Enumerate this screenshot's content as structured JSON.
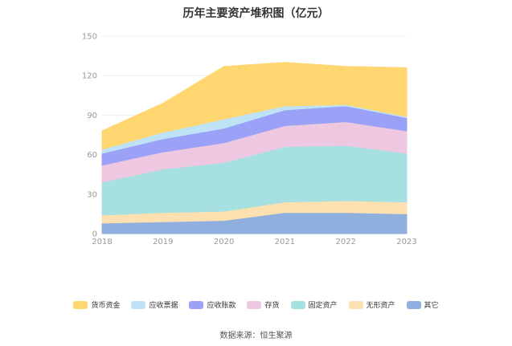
{
  "chart_data": {
    "type": "area",
    "title": "历年主要资产堆积图（亿元）",
    "stacked": true,
    "categories": [
      "2018",
      "2019",
      "2020",
      "2021",
      "2022",
      "2023"
    ],
    "ylim": [
      0,
      150
    ],
    "yticks": [
      0,
      30,
      60,
      90,
      120,
      150
    ],
    "grid": true,
    "legend_position": "bottom",
    "series": [
      {
        "name": "其它",
        "color": "#8fafde",
        "values": [
          8,
          9,
          10,
          16,
          16,
          15
        ]
      },
      {
        "name": "无形资产",
        "color": "#fde0b0",
        "values": [
          6,
          7,
          7,
          8,
          9,
          9
        ]
      },
      {
        "name": "固定资产",
        "color": "#a6e0e0",
        "values": [
          25,
          33,
          37,
          42,
          42,
          37
        ]
      },
      {
        "name": "存货",
        "color": "#eec8e0",
        "values": [
          13,
          13,
          15,
          16,
          18,
          17
        ]
      },
      {
        "name": "应收账款",
        "color": "#9aa1f7",
        "values": [
          9,
          10,
          11,
          12,
          12,
          10
        ]
      },
      {
        "name": "应收票据",
        "color": "#bfe3f6",
        "values": [
          3,
          5,
          7,
          3,
          1,
          1
        ]
      },
      {
        "name": "货币资金",
        "color": "#ffd670",
        "values": [
          14,
          22,
          40,
          33,
          29,
          37
        ]
      }
    ]
  },
  "legend_order": [
    "货币资金",
    "应收票据",
    "应收账款",
    "存货",
    "固定资产",
    "无形资产",
    "其它"
  ],
  "footer": {
    "source": "数据来源：恒生聚源"
  }
}
